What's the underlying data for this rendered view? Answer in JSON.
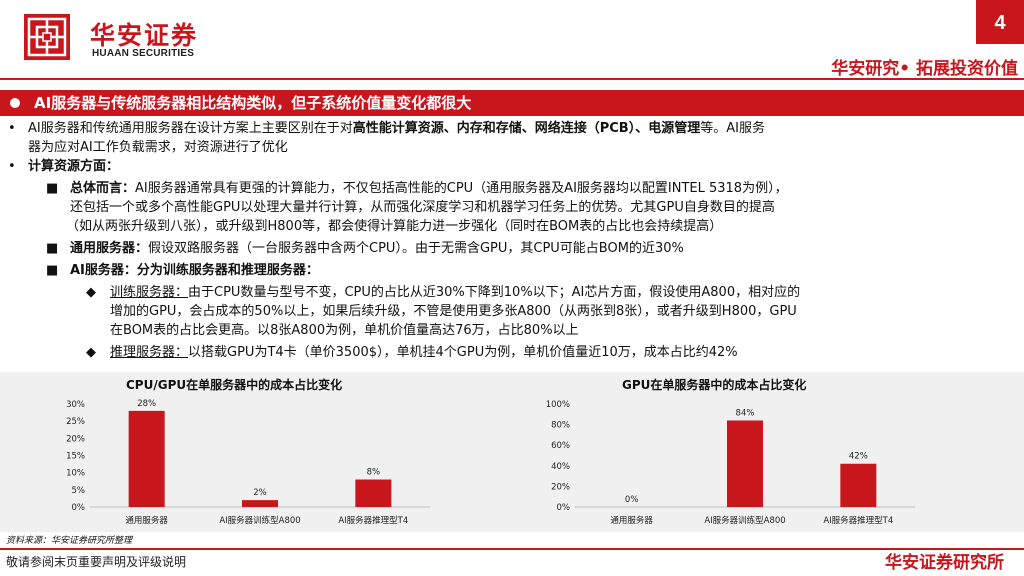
{
  "header": {
    "logo_cn": "华安证券",
    "logo_en": "HUAAN SECURITIES",
    "page_number": "4",
    "slogan": "华安研究• 拓展投资价值",
    "brand_color": "#c8161d"
  },
  "section": {
    "title": "AI服务器与传统服务器相比结构类似，但子系统价值量变化都很大"
  },
  "content": {
    "p1_a": "AI服务器和传统通用服务器在设计方案上主要区别在于对",
    "p1_b": "高性能计算资源、内存和存储、网络连接（PCB）、电源管理",
    "p1_c": "等。AI服务",
    "p1_d": "器为应对AI工作负载需求，对资源进行了优化",
    "p2": "计算资源方面：",
    "s1_label": "总体而言：",
    "s1_1": "AI服务器通常具有更强的计算能力，不仅包括高性能的CPU（通用服务器及AI服务器均以配置INTEL  5318为例），",
    "s1_2": "还包括一个或多个高性能GPU以处理大量并行计算，从而强化深度学习和机器学习任务上的优势。尤其GPU自身数目的提高",
    "s1_3": "（如从两张升级到八张），或升级到H800等，都会使得计算能力进一步强化（同时在BOM表的占比也会持续提高）",
    "s2_label": "通用服务器：",
    "s2_1": "假设双路服务器（一台服务器中含两个CPU）。由于无需含GPU，其CPU可能占BOM的近30%",
    "s3_label": "AI服务器：分为训练服务器和推理服务器：",
    "t1_label": "训练服务器：",
    "t1_1": "由于CPU数量与型号不变，CPU的占比从近30%下降到10%以下；AI芯片方面，假设使用A800，相对应的",
    "t1_2": "增加的GPU，会占成本的50%以上，如果后续升级，不管是使用更多张A800（从两张到8张），或者升级到H800，GPU",
    "t1_3": "在BOM表的占比会更高。以8张A800为例，单机价值量高达76万，占比80%以上",
    "t2_label": "推理服务器：",
    "t2_1": "以搭载GPU为T4卡（单价3500$），单机挂4个GPU为例，单机价值量近10万，成本占比约42%",
    "bullet_dot": "•",
    "bullet_square": "■",
    "bullet_diamond": "◆"
  },
  "chart_data": [
    {
      "type": "bar",
      "title": "CPU/GPU在单服务器中的成本占比变化",
      "categories": [
        "通用服务器",
        "AI服务器训练型A800",
        "AI服务器推理型T4"
      ],
      "values": [
        28,
        2,
        8
      ],
      "value_labels": [
        "28%",
        "2%",
        "8%"
      ],
      "ylim": [
        0,
        30
      ],
      "yticks": [
        "0%",
        "5%",
        "10%",
        "15%",
        "20%",
        "25%",
        "30%"
      ],
      "bar_color": "#c8161d",
      "grid": false
    },
    {
      "type": "bar",
      "title": "GPU在单服务器中的成本占比变化",
      "categories": [
        "通用服务器",
        "AI服务器训练型A800",
        "AI服务器推理型T4"
      ],
      "values": [
        0,
        84,
        42
      ],
      "value_labels": [
        "0%",
        "84%",
        "42%"
      ],
      "ylim": [
        0,
        100
      ],
      "yticks": [
        "0%",
        "20%",
        "40%",
        "60%",
        "80%",
        "100%"
      ],
      "bar_color": "#c8161d",
      "grid": false
    }
  ],
  "footer": {
    "source": "资料来源：华安证券研究所整理",
    "disclaimer": "敬请参阅末页重要声明及评级说明",
    "brand": "华安证券研究所"
  }
}
